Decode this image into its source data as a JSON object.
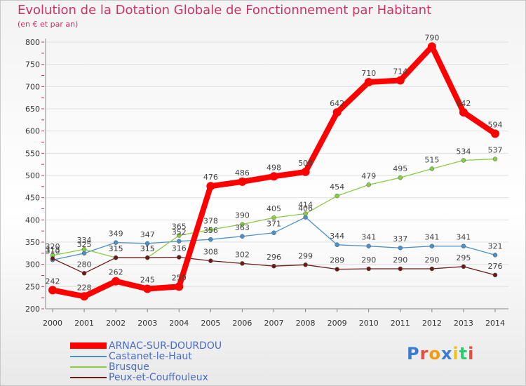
{
  "chart_data": {
    "type": "line",
    "title": "Evolution de la Dotation Globale de Fonctionnement par Habitant",
    "subtitle": "(en € et par an)",
    "x": [
      "2000",
      "2001",
      "2002",
      "2003",
      "2004",
      "2005",
      "2006",
      "2007",
      "2008",
      "2009",
      "2010",
      "2011",
      "2012",
      "2013",
      "2014"
    ],
    "yticks": [
      200,
      250,
      300,
      350,
      400,
      450,
      500,
      550,
      600,
      650,
      700,
      750,
      800
    ],
    "ylim": [
      200,
      800
    ],
    "series": [
      {
        "name": "ARNAC-SUR-DOURDOU",
        "color": "#ff0000",
        "values": [
          242,
          228,
          262,
          245,
          250,
          476,
          486,
          498,
          508,
          642,
          710,
          714,
          790,
          642,
          594
        ],
        "labels": [
          "242",
          "228",
          "262",
          "245",
          "250",
          "476",
          "486",
          "498",
          "508",
          "642",
          "710",
          "714",
          "790",
          "642",
          "594"
        ]
      },
      {
        "name": "Castanet-le-Haut",
        "color": "#4a90c8",
        "values": [
          310,
          325,
          349,
          347,
          352,
          356,
          363,
          371,
          406,
          344,
          341,
          337,
          341,
          341,
          321
        ],
        "labels": [
          "310",
          "325",
          "349",
          "347",
          "352",
          "356",
          "363",
          "371",
          "406",
          "344",
          "341",
          "337",
          "341",
          "341",
          "321"
        ]
      },
      {
        "name": "Brusque",
        "color": "#88cc44",
        "values": [
          320,
          334,
          315,
          315,
          365,
          378,
          390,
          405,
          414,
          454,
          479,
          495,
          515,
          534,
          537
        ],
        "labels": [
          "320",
          "334",
          "315",
          "315",
          "365",
          "378",
          "390",
          "405",
          "414",
          "454",
          "479",
          "495",
          "515",
          "534",
          "537"
        ]
      },
      {
        "name": "Peux-et-Couffouleux",
        "color": "#6b1a1a",
        "values": [
          313,
          280,
          315,
          315,
          316,
          308,
          302,
          296,
          299,
          289,
          290,
          290,
          290,
          295,
          276
        ],
        "labels": [
          "313",
          "280",
          "315",
          "315",
          "316",
          "308",
          "302",
          "296",
          "299",
          "289",
          "290",
          "290",
          "290",
          "295",
          "276"
        ]
      }
    ]
  },
  "branding": {
    "logo_text": "Proxiti"
  }
}
